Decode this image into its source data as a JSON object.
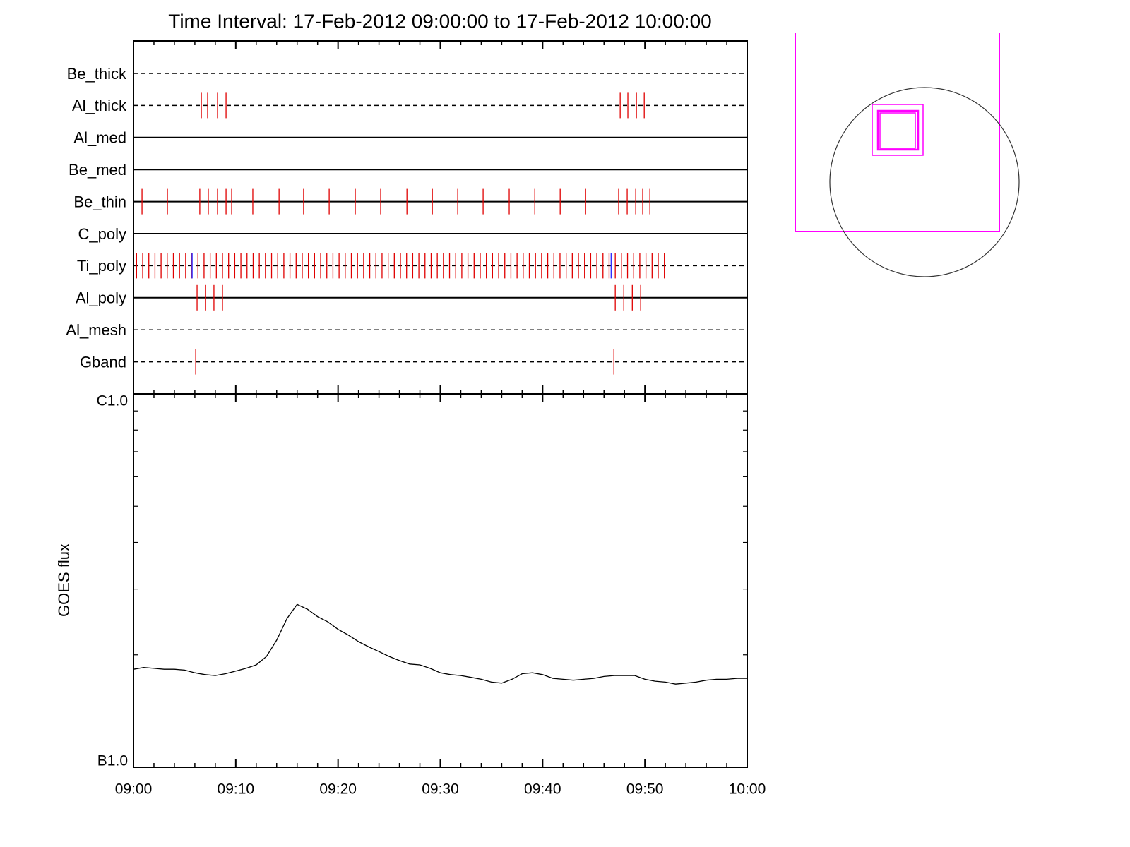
{
  "chart_data": [
    {
      "type": "event",
      "title": "Time Interval: 17-Feb-2012 09:00:00 to 17-Feb-2012 10:00:00",
      "xlim": [
        "09:00",
        "10:00"
      ],
      "xticks": [
        "09:00",
        "09:10",
        "09:20",
        "09:30",
        "09:40",
        "09:50",
        "10:00"
      ],
      "minor_xticks": [
        "09:02",
        "09:04",
        "09:06",
        "09:08",
        "09:12",
        "09:14",
        "09:16",
        "09:18",
        "09:22",
        "09:24",
        "09:26",
        "09:28",
        "09:32",
        "09:34",
        "09:36",
        "09:38",
        "09:42",
        "09:44",
        "09:46",
        "09:48",
        "09:52",
        "09:54",
        "09:56",
        "09:58"
      ],
      "color": "#e00000",
      "alt_color": "#3030ff",
      "rows": [
        {
          "name": "Be_thick",
          "style": "dashed",
          "events": []
        },
        {
          "name": "Al_thick",
          "style": "dashed",
          "events": [
            "09:06:38",
            "09:07:15",
            "09:08:13",
            "09:09:03",
            "09:47:35",
            "09:48:20",
            "09:49:10",
            "09:49:56"
          ]
        },
        {
          "name": "Al_med",
          "style": "solid",
          "events": []
        },
        {
          "name": "Be_med",
          "style": "solid",
          "events": []
        },
        {
          "name": "Be_thin",
          "style": "solid",
          "events": [
            "09:00:50",
            "09:03:19",
            "09:06:29",
            "09:07:19",
            "09:08:13",
            "09:09:03",
            "09:09:36",
            "09:11:40",
            "09:14:14",
            "09:16:38",
            "09:19:08",
            "09:21:41",
            "09:24:10",
            "09:26:44",
            "09:29:13",
            "09:31:42",
            "09:34:11",
            "09:36:44",
            "09:39:14",
            "09:41:43",
            "09:44:12",
            "09:47:26",
            "09:48:16",
            "09:49:06",
            "09:49:47",
            "09:50:29"
          ]
        },
        {
          "name": "C_poly",
          "style": "solid",
          "events": []
        },
        {
          "name": "Ti_poly",
          "style": "dashed",
          "events": [
            "09:00:18",
            "09:00:54",
            "09:01:30",
            "09:02:06",
            "09:02:42",
            "09:03:18",
            "09:03:54",
            "09:04:30",
            "09:05:06",
            "09:05:42",
            "09:06:18",
            "09:06:54",
            "09:07:30",
            "09:08:06",
            "09:08:42",
            "09:09:18",
            "09:09:54",
            "09:10:30",
            "09:11:06",
            "09:11:42",
            "09:12:18",
            "09:12:54",
            "09:13:30",
            "09:14:06",
            "09:14:42",
            "09:15:18",
            "09:15:54",
            "09:16:30",
            "09:17:06",
            "09:17:42",
            "09:18:18",
            "09:18:54",
            "09:19:30",
            "09:20:06",
            "09:20:42",
            "09:21:18",
            "09:21:54",
            "09:22:30",
            "09:23:06",
            "09:23:42",
            "09:24:18",
            "09:24:54",
            "09:25:30",
            "09:26:06",
            "09:26:42",
            "09:27:18",
            "09:27:54",
            "09:28:30",
            "09:29:06",
            "09:29:42",
            "09:30:18",
            "09:30:54",
            "09:31:30",
            "09:32:06",
            "09:32:42",
            "09:33:18",
            "09:33:54",
            "09:34:30",
            "09:35:06",
            "09:35:42",
            "09:36:18",
            "09:36:54",
            "09:37:30",
            "09:38:06",
            "09:38:42",
            "09:39:18",
            "09:39:54",
            "09:40:30",
            "09:41:06",
            "09:41:42",
            "09:42:18",
            "09:42:54",
            "09:43:30",
            "09:44:06",
            "09:44:42",
            "09:45:18",
            "09:45:54",
            "09:46:30",
            "09:47:06",
            "09:47:42",
            "09:48:18",
            "09:48:54",
            "09:49:30",
            "09:50:06",
            "09:50:42",
            "09:51:18",
            "09:51:54"
          ],
          "alt_events": [
            "09:05:44",
            "09:46:42"
          ]
        },
        {
          "name": "Al_poly",
          "style": "solid",
          "events": [
            "09:06:13",
            "09:07:02",
            "09:07:52",
            "09:08:42",
            "09:47:06",
            "09:47:56",
            "09:48:46",
            "09:49:35"
          ]
        },
        {
          "name": "Al_mesh",
          "style": "dashed",
          "events": []
        },
        {
          "name": "Gband",
          "style": "dashed",
          "events": [
            "09:06:05",
            "09:46:58"
          ]
        }
      ]
    },
    {
      "type": "line",
      "ylabel": "GOES flux",
      "xlim": [
        "09:00",
        "10:00"
      ],
      "xticks": [
        "09:00",
        "09:10",
        "09:20",
        "09:30",
        "09:40",
        "09:50",
        "10:00"
      ],
      "minor_xticks": [
        "09:02",
        "09:04",
        "09:06",
        "09:08",
        "09:12",
        "09:14",
        "09:16",
        "09:18",
        "09:22",
        "09:24",
        "09:26",
        "09:28",
        "09:32",
        "09:34",
        "09:36",
        "09:38",
        "09:42",
        "09:44",
        "09:46",
        "09:48",
        "09:52",
        "09:54",
        "09:56",
        "09:58"
      ],
      "ylim": [
        1e-07,
        1e-06
      ],
      "log_y": true,
      "yticks": [
        {
          "value": 1e-07,
          "label": "B1.0"
        },
        {
          "value": 1e-06,
          "label": "C1.0"
        }
      ],
      "minor_yticks": [
        2e-07,
        3e-07,
        4e-07,
        5e-07,
        6e-07,
        7e-07,
        8e-07,
        9e-07
      ],
      "x": [
        "09:00",
        "09:01",
        "09:02",
        "09:03",
        "09:04",
        "09:05",
        "09:06",
        "09:07",
        "09:08",
        "09:09",
        "09:10",
        "09:11",
        "09:12",
        "09:13",
        "09:14",
        "09:15",
        "09:16",
        "09:17",
        "09:18",
        "09:19",
        "09:20",
        "09:21",
        "09:22",
        "09:23",
        "09:24",
        "09:25",
        "09:26",
        "09:27",
        "09:28",
        "09:29",
        "09:30",
        "09:31",
        "09:32",
        "09:33",
        "09:34",
        "09:35",
        "09:36",
        "09:37",
        "09:38",
        "09:39",
        "09:40",
        "09:41",
        "09:42",
        "09:43",
        "09:44",
        "09:45",
        "09:46",
        "09:47",
        "09:48",
        "09:49",
        "09:50",
        "09:51",
        "09:52",
        "09:53",
        "09:54",
        "09:55",
        "09:56",
        "09:57",
        "09:58",
        "09:59",
        "10:00"
      ],
      "series": [
        {
          "color": "#000000",
          "values": [
            1.83e-07,
            1.85e-07,
            1.84e-07,
            1.83e-07,
            1.83e-07,
            1.82e-07,
            1.79e-07,
            1.77e-07,
            1.76e-07,
            1.78e-07,
            1.81e-07,
            1.84e-07,
            1.88e-07,
            1.98e-07,
            2.19e-07,
            2.5e-07,
            2.73e-07,
            2.65e-07,
            2.53e-07,
            2.45e-07,
            2.34e-07,
            2.26e-07,
            2.17e-07,
            2.1e-07,
            2.04e-07,
            1.98e-07,
            1.93e-07,
            1.89e-07,
            1.88e-07,
            1.84e-07,
            1.79e-07,
            1.77e-07,
            1.76e-07,
            1.74e-07,
            1.72e-07,
            1.69e-07,
            1.68e-07,
            1.72e-07,
            1.78e-07,
            1.79e-07,
            1.77e-07,
            1.73e-07,
            1.72e-07,
            1.71e-07,
            1.72e-07,
            1.73e-07,
            1.75e-07,
            1.76e-07,
            1.76e-07,
            1.76e-07,
            1.72e-07,
            1.7e-07,
            1.69e-07,
            1.67e-07,
            1.68e-07,
            1.69e-07,
            1.71e-07,
            1.72e-07,
            1.72e-07,
            1.73e-07,
            1.73e-07
          ]
        }
      ]
    }
  ]
}
